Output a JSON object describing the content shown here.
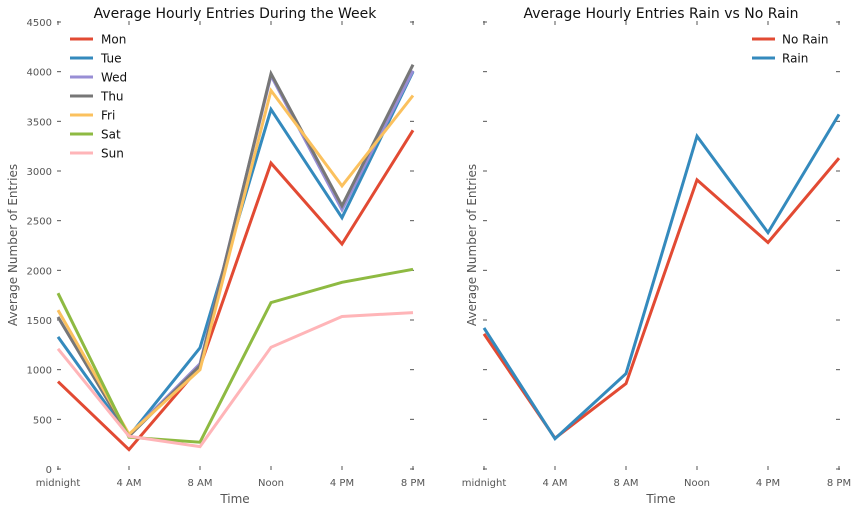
{
  "chart_data": [
    {
      "type": "line",
      "title": "Average Hourly Entries During the Week",
      "xlabel": "Time",
      "ylabel": "Average Number of Entries",
      "categories": [
        "midnight",
        "4 AM",
        "8 AM",
        "Noon",
        "4 PM",
        "8 PM"
      ],
      "ylim": [
        0,
        4500
      ],
      "yticks": [
        0,
        500,
        1000,
        1500,
        2000,
        2500,
        3000,
        3500,
        4000,
        4500
      ],
      "grid": false,
      "legend_position": "top-left",
      "series": [
        {
          "name": "Mon",
          "color": "#E24A33",
          "values": [
            880,
            195,
            1030,
            3080,
            2265,
            3410
          ]
        },
        {
          "name": "Tue",
          "color": "#348ABD",
          "values": [
            1330,
            330,
            1220,
            3620,
            2530,
            4000
          ]
        },
        {
          "name": "Wed",
          "color": "#988ED5",
          "values": [
            1530,
            340,
            1060,
            3960,
            2610,
            4010
          ]
        },
        {
          "name": "Thu",
          "color": "#777777",
          "values": [
            1530,
            330,
            1040,
            3980,
            2650,
            4070
          ]
        },
        {
          "name": "Fri",
          "color": "#FBC15E",
          "values": [
            1600,
            350,
            1000,
            3810,
            2850,
            3760
          ]
        },
        {
          "name": "Sat",
          "color": "#8EBA42",
          "values": [
            1770,
            320,
            270,
            1675,
            1880,
            2010
          ]
        },
        {
          "name": "Sun",
          "color": "#FFB5B8",
          "values": [
            1210,
            330,
            225,
            1225,
            1535,
            1575
          ]
        }
      ]
    },
    {
      "type": "line",
      "title": "Average Hourly Entries Rain vs No Rain",
      "xlabel": "Time",
      "ylabel": "Average Number of Entries",
      "categories": [
        "midnight",
        "4 AM",
        "8 AM",
        "Noon",
        "4 PM",
        "8 PM"
      ],
      "ylim": [
        0,
        4500
      ],
      "grid": false,
      "legend_position": "top-right",
      "series": [
        {
          "name": "No Rain",
          "color": "#E24A33",
          "values": [
            1360,
            310,
            860,
            2910,
            2280,
            3130
          ]
        },
        {
          "name": "Rain",
          "color": "#348ABD",
          "values": [
            1420,
            305,
            960,
            3350,
            2380,
            3570
          ]
        }
      ]
    }
  ]
}
